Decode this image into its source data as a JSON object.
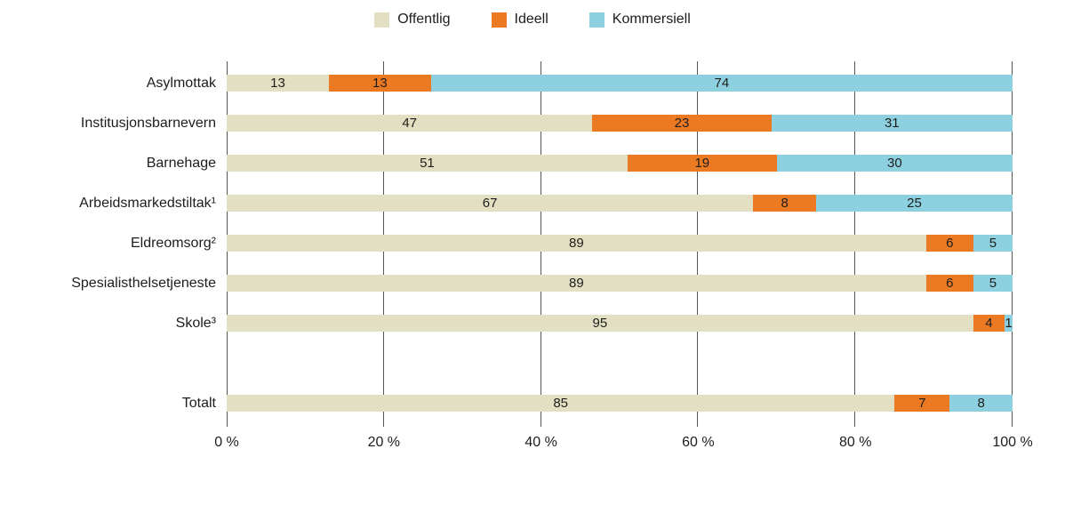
{
  "chart_data": {
    "type": "bar",
    "orientation": "horizontal",
    "stacked": true,
    "unit": "%",
    "title": "",
    "xlabel": "",
    "ylabel": "",
    "xlim": [
      0,
      100
    ],
    "grid": "vertical",
    "legend_position": "top",
    "gap_before_last_category": true,
    "categories": [
      "Asylmottak",
      "Institusjonsbarnevern",
      "Barnehage",
      "Arbeidsmarkedstiltak¹",
      "Eldreomsorg²",
      "Spesialisthelsetjeneste",
      "Skole³",
      "Totalt"
    ],
    "series": [
      {
        "name": "Offentlig",
        "color": "#E3DFC2",
        "values": [
          13,
          47,
          51,
          67,
          89,
          89,
          95,
          85
        ]
      },
      {
        "name": "Ideell",
        "color": "#EC7A23",
        "values": [
          13,
          23,
          19,
          8,
          6,
          6,
          4,
          7
        ]
      },
      {
        "name": "Kommersiell",
        "color": "#8DD1E1",
        "values": [
          74,
          31,
          30,
          25,
          5,
          5,
          1,
          8
        ]
      }
    ],
    "x_ticks": [
      "0 %",
      "20 %",
      "40 %",
      "60 %",
      "80 %",
      "100 %"
    ]
  },
  "colors": {
    "gridline": "#555555",
    "text": "#1D1D1B",
    "background": "#FFFFFF"
  }
}
